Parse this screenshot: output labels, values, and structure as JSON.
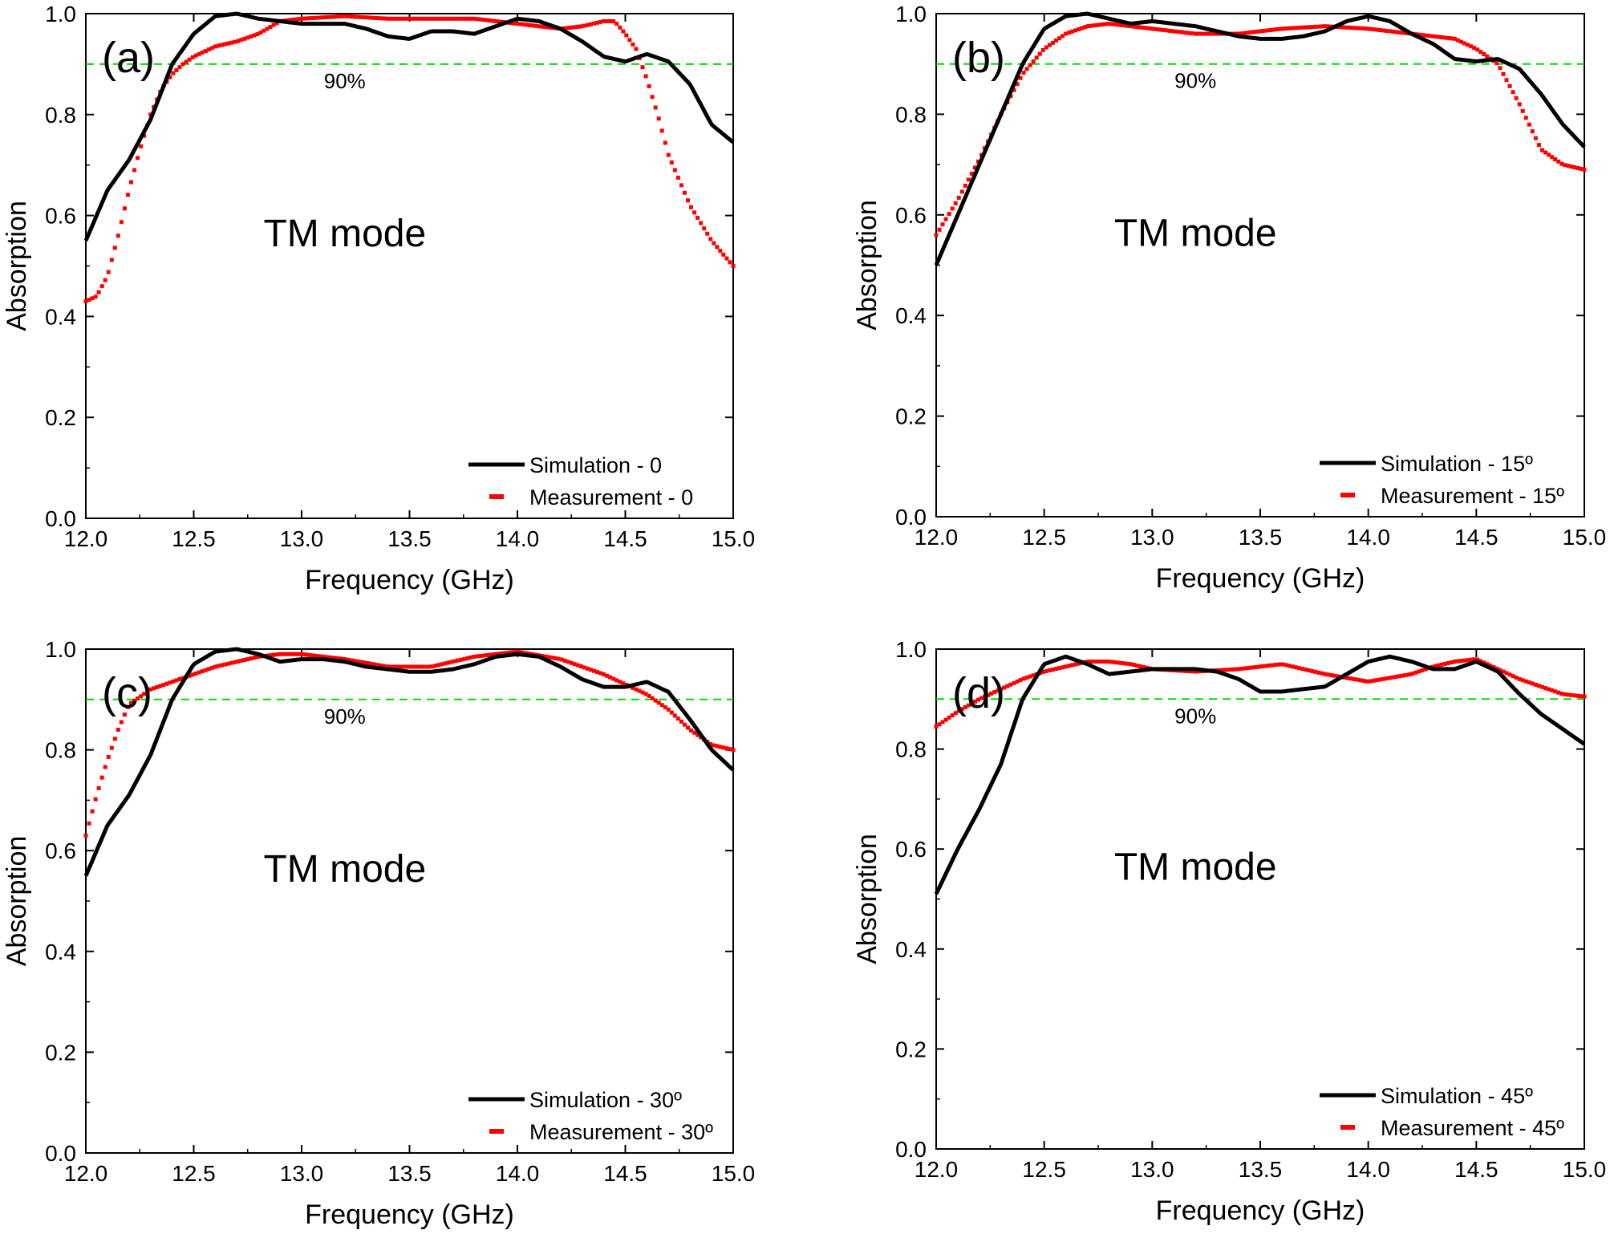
{
  "figure": {
    "background": "#ffffff"
  },
  "colors": {
    "simulation": "#000000",
    "measurement": "#ff0000",
    "reference": "#00dd00",
    "axis": "#000000"
  },
  "chart_data": [
    {
      "type": "line",
      "panel_label": "(a)",
      "mode_label": "TM mode",
      "xlabel": "Frequency (GHz)",
      "ylabel": "Absorption",
      "xlim": [
        12.0,
        15.0
      ],
      "ylim": [
        0.0,
        1.0
      ],
      "xticks": [
        "12.0",
        "12.5",
        "13.0",
        "13.5",
        "14.0",
        "14.5",
        "15.0"
      ],
      "yticks": [
        "0.0",
        "0.2",
        "0.4",
        "0.6",
        "0.8",
        "1.0"
      ],
      "reference_line": {
        "y": 0.9,
        "label": "90%"
      },
      "legend_position": "bottom-right",
      "series": [
        {
          "name": "Simulation - 0",
          "style": "solid",
          "x": [
            12.0,
            12.1,
            12.2,
            12.3,
            12.4,
            12.5,
            12.6,
            12.7,
            12.8,
            12.9,
            13.0,
            13.1,
            13.2,
            13.3,
            13.4,
            13.5,
            13.6,
            13.7,
            13.8,
            13.9,
            14.0,
            14.1,
            14.2,
            14.3,
            14.4,
            14.5,
            14.6,
            14.7,
            14.8,
            14.9,
            15.0
          ],
          "values": [
            0.55,
            0.65,
            0.71,
            0.79,
            0.9,
            0.96,
            0.995,
            1.0,
            0.99,
            0.985,
            0.98,
            0.98,
            0.98,
            0.97,
            0.955,
            0.95,
            0.965,
            0.965,
            0.96,
            0.975,
            0.99,
            0.985,
            0.97,
            0.945,
            0.915,
            0.905,
            0.92,
            0.905,
            0.86,
            0.78,
            0.745
          ]
        },
        {
          "name": "Measurement - 0",
          "style": "dotted",
          "x": [
            12.0,
            12.05,
            12.1,
            12.15,
            12.2,
            12.25,
            12.3,
            12.35,
            12.4,
            12.45,
            12.5,
            12.6,
            12.7,
            12.8,
            12.9,
            13.0,
            13.2,
            13.4,
            13.6,
            13.8,
            14.0,
            14.1,
            14.2,
            14.3,
            14.4,
            14.45,
            14.5,
            14.55,
            14.6,
            14.65,
            14.7,
            14.8,
            14.9,
            15.0
          ],
          "values": [
            0.43,
            0.44,
            0.48,
            0.56,
            0.65,
            0.73,
            0.8,
            0.85,
            0.88,
            0.9,
            0.915,
            0.935,
            0.945,
            0.96,
            0.985,
            0.99,
            0.995,
            0.99,
            0.99,
            0.99,
            0.98,
            0.975,
            0.97,
            0.975,
            0.985,
            0.985,
            0.96,
            0.93,
            0.87,
            0.8,
            0.72,
            0.62,
            0.55,
            0.5
          ]
        }
      ]
    },
    {
      "type": "line",
      "panel_label": "(b)",
      "mode_label": "TM mode",
      "xlabel": "Frequency (GHz)",
      "ylabel": "Absorption",
      "xlim": [
        12.0,
        15.0
      ],
      "ylim": [
        0.0,
        1.0
      ],
      "xticks": [
        "12.0",
        "12.5",
        "13.0",
        "13.5",
        "14.0",
        "14.5",
        "15.0"
      ],
      "yticks": [
        "0.0",
        "0.2",
        "0.4",
        "0.6",
        "0.8",
        "1.0"
      ],
      "reference_line": {
        "y": 0.9,
        "label": "90%"
      },
      "legend_position": "bottom-right",
      "series": [
        {
          "name": "Simulation - 15º",
          "style": "solid",
          "x": [
            12.0,
            12.1,
            12.2,
            12.3,
            12.4,
            12.5,
            12.6,
            12.7,
            12.8,
            12.9,
            13.0,
            13.1,
            13.2,
            13.3,
            13.4,
            13.5,
            13.6,
            13.7,
            13.8,
            13.9,
            14.0,
            14.1,
            14.2,
            14.3,
            14.4,
            14.5,
            14.6,
            14.7,
            14.8,
            14.9,
            15.0
          ],
          "values": [
            0.5,
            0.6,
            0.7,
            0.8,
            0.9,
            0.97,
            0.995,
            1.0,
            0.99,
            0.98,
            0.985,
            0.98,
            0.975,
            0.965,
            0.955,
            0.95,
            0.95,
            0.955,
            0.965,
            0.985,
            0.995,
            0.985,
            0.96,
            0.94,
            0.91,
            0.905,
            0.91,
            0.89,
            0.84,
            0.78,
            0.735
          ]
        },
        {
          "name": "Measurement - 15º",
          "style": "dotted",
          "x": [
            12.0,
            12.1,
            12.2,
            12.3,
            12.4,
            12.5,
            12.6,
            12.7,
            12.8,
            12.9,
            13.0,
            13.2,
            13.4,
            13.6,
            13.8,
            14.0,
            14.2,
            14.4,
            14.5,
            14.6,
            14.7,
            14.8,
            14.9,
            15.0
          ],
          "values": [
            0.56,
            0.63,
            0.71,
            0.8,
            0.88,
            0.93,
            0.96,
            0.975,
            0.98,
            0.975,
            0.97,
            0.96,
            0.96,
            0.97,
            0.975,
            0.97,
            0.96,
            0.95,
            0.93,
            0.9,
            0.82,
            0.73,
            0.7,
            0.69
          ]
        }
      ]
    },
    {
      "type": "line",
      "panel_label": "(c)",
      "mode_label": "TM mode",
      "xlabel": "Frequency (GHz)",
      "ylabel": "Absorption",
      "xlim": [
        12.0,
        15.0
      ],
      "ylim": [
        0.0,
        1.0
      ],
      "xticks": [
        "12.0",
        "12.5",
        "13.0",
        "13.5",
        "14.0",
        "14.5",
        "15.0"
      ],
      "yticks": [
        "0.0",
        "0.2",
        "0.4",
        "0.6",
        "0.8",
        "1.0"
      ],
      "reference_line": {
        "y": 0.9,
        "label": "90%"
      },
      "legend_position": "bottom-right",
      "series": [
        {
          "name": "Simulation - 30º",
          "style": "solid",
          "x": [
            12.0,
            12.1,
            12.2,
            12.3,
            12.4,
            12.5,
            12.6,
            12.7,
            12.8,
            12.9,
            13.0,
            13.1,
            13.2,
            13.3,
            13.4,
            13.5,
            13.6,
            13.7,
            13.8,
            13.9,
            14.0,
            14.1,
            14.2,
            14.3,
            14.4,
            14.5,
            14.6,
            14.7,
            14.8,
            14.9,
            15.0
          ],
          "values": [
            0.55,
            0.65,
            0.71,
            0.79,
            0.9,
            0.97,
            0.995,
            1.0,
            0.99,
            0.975,
            0.98,
            0.98,
            0.975,
            0.965,
            0.96,
            0.955,
            0.955,
            0.96,
            0.97,
            0.985,
            0.99,
            0.985,
            0.965,
            0.94,
            0.925,
            0.925,
            0.935,
            0.915,
            0.86,
            0.8,
            0.76
          ]
        },
        {
          "name": "Measurement - 30º",
          "style": "dotted",
          "x": [
            12.0,
            12.05,
            12.1,
            12.15,
            12.2,
            12.3,
            12.4,
            12.5,
            12.6,
            12.7,
            12.8,
            12.9,
            13.0,
            13.2,
            13.4,
            13.6,
            13.8,
            14.0,
            14.2,
            14.4,
            14.5,
            14.6,
            14.7,
            14.8,
            14.9,
            15.0
          ],
          "values": [
            0.63,
            0.71,
            0.78,
            0.84,
            0.89,
            0.92,
            0.935,
            0.95,
            0.965,
            0.975,
            0.985,
            0.99,
            0.99,
            0.98,
            0.965,
            0.965,
            0.985,
            0.995,
            0.98,
            0.95,
            0.93,
            0.91,
            0.88,
            0.84,
            0.81,
            0.8
          ]
        }
      ]
    },
    {
      "type": "line",
      "panel_label": "(d)",
      "mode_label": "TM mode",
      "xlabel": "Frequency (GHz)",
      "ylabel": "Absorption",
      "xlim": [
        12.0,
        15.0
      ],
      "ylim": [
        0.0,
        1.0
      ],
      "xticks": [
        "12.0",
        "12.5",
        "13.0",
        "13.5",
        "14.0",
        "14.5",
        "15.0"
      ],
      "yticks": [
        "0.0",
        "0.2",
        "0.4",
        "0.6",
        "0.8",
        "1.0"
      ],
      "reference_line": {
        "y": 0.9,
        "label": "90%"
      },
      "legend_position": "bottom-right",
      "series": [
        {
          "name": "Simulation - 45º",
          "style": "solid",
          "x": [
            12.0,
            12.1,
            12.2,
            12.3,
            12.4,
            12.5,
            12.6,
            12.7,
            12.8,
            12.9,
            13.0,
            13.1,
            13.2,
            13.3,
            13.4,
            13.5,
            13.6,
            13.7,
            13.8,
            13.9,
            14.0,
            14.1,
            14.2,
            14.3,
            14.4,
            14.5,
            14.6,
            14.7,
            14.8,
            14.9,
            15.0
          ],
          "values": [
            0.51,
            0.6,
            0.68,
            0.77,
            0.9,
            0.97,
            0.985,
            0.97,
            0.95,
            0.955,
            0.96,
            0.96,
            0.96,
            0.955,
            0.94,
            0.915,
            0.915,
            0.92,
            0.925,
            0.95,
            0.975,
            0.985,
            0.975,
            0.96,
            0.96,
            0.975,
            0.955,
            0.91,
            0.87,
            0.84,
            0.81
          ]
        },
        {
          "name": "Measurement - 45º",
          "style": "dotted",
          "x": [
            12.0,
            12.1,
            12.2,
            12.3,
            12.4,
            12.5,
            12.6,
            12.7,
            12.8,
            12.9,
            13.0,
            13.2,
            13.4,
            13.6,
            13.8,
            14.0,
            14.2,
            14.3,
            14.4,
            14.5,
            14.6,
            14.7,
            14.8,
            14.9,
            15.0
          ],
          "values": [
            0.845,
            0.875,
            0.9,
            0.92,
            0.94,
            0.955,
            0.965,
            0.975,
            0.975,
            0.97,
            0.96,
            0.955,
            0.96,
            0.97,
            0.95,
            0.935,
            0.95,
            0.965,
            0.975,
            0.98,
            0.96,
            0.94,
            0.925,
            0.91,
            0.905
          ]
        }
      ]
    }
  ]
}
